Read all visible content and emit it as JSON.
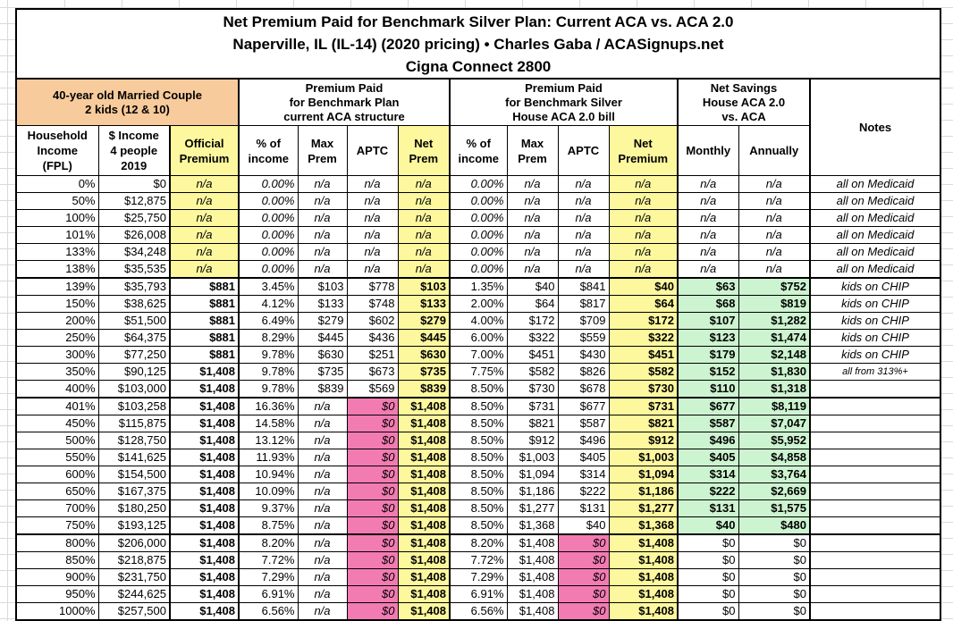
{
  "title": {
    "line1": "Net Premium Paid for Benchmark Silver Plan: Current ACA vs. ACA 2.0",
    "line2": "Naperville, IL (IL-14) (2020 pricing) • Charles Gaba / ACASignups.net",
    "line3": "Cigna Connect 2800"
  },
  "colors": {
    "orange": "#F8CB9C",
    "yellow": "#FDF89E",
    "pink": "#F27BB2",
    "green": "#CDF4D0",
    "grid": "#D9D9D9"
  },
  "header": {
    "profile": "40-year old Married Couple\n2 kids (12 & 10)",
    "group_current": "Premium Paid\nfor Benchmark Plan\ncurrent ACA structure",
    "group_aca2": "Premium Paid\nfor Benchmark Silver\nHouse ACA 2.0 bill",
    "group_savings": "Net Savings\nHouse ACA 2.0\nvs. ACA",
    "notes": "Notes",
    "columns": [
      "Household\nIncome\n(FPL)",
      "$ Income\n4 people\n2019",
      "Official\nPremium",
      "% of\nincome",
      "Max\nPrem",
      "APTC",
      "Net\nPrem",
      "% of\nincome",
      "Max\nPrem",
      "APTC",
      "Net\nPremium",
      "Monthly",
      "Annually"
    ]
  },
  "table": {
    "rows": [
      {
        "type": "medicaid",
        "fpl": "0%",
        "income": "$0",
        "official": "n/a",
        "aca": [
          "0.00%",
          "n/a",
          "n/a",
          "n/a"
        ],
        "aca2": [
          "0.00%",
          "n/a",
          "n/a",
          "n/a"
        ],
        "monthly": "n/a",
        "annually": "n/a",
        "note": "all on Medicaid"
      },
      {
        "type": "medicaid",
        "fpl": "50%",
        "income": "$12,875",
        "official": "n/a",
        "aca": [
          "0.00%",
          "n/a",
          "n/a",
          "n/a"
        ],
        "aca2": [
          "0.00%",
          "n/a",
          "n/a",
          "n/a"
        ],
        "monthly": "n/a",
        "annually": "n/a",
        "note": "all on Medicaid"
      },
      {
        "type": "medicaid",
        "fpl": "100%",
        "income": "$25,750",
        "official": "n/a",
        "aca": [
          "0.00%",
          "n/a",
          "n/a",
          "n/a"
        ],
        "aca2": [
          "0.00%",
          "n/a",
          "n/a",
          "n/a"
        ],
        "monthly": "n/a",
        "annually": "n/a",
        "note": "all on Medicaid"
      },
      {
        "type": "medicaid",
        "fpl": "101%",
        "income": "$26,008",
        "official": "n/a",
        "aca": [
          "0.00%",
          "n/a",
          "n/a",
          "n/a"
        ],
        "aca2": [
          "0.00%",
          "n/a",
          "n/a",
          "n/a"
        ],
        "monthly": "n/a",
        "annually": "n/a",
        "note": "all on Medicaid"
      },
      {
        "type": "medicaid",
        "fpl": "133%",
        "income": "$34,248",
        "official": "n/a",
        "aca": [
          "0.00%",
          "n/a",
          "n/a",
          "n/a"
        ],
        "aca2": [
          "0.00%",
          "n/a",
          "n/a",
          "n/a"
        ],
        "monthly": "n/a",
        "annually": "n/a",
        "note": "all on Medicaid"
      },
      {
        "type": "medicaid",
        "fpl": "138%",
        "income": "$35,535",
        "official": "n/a",
        "aca": [
          "0.00%",
          "n/a",
          "n/a",
          "n/a"
        ],
        "aca2": [
          "0.00%",
          "n/a",
          "n/a",
          "n/a"
        ],
        "monthly": "n/a",
        "annually": "n/a",
        "note": "all on Medicaid"
      },
      {
        "type": "subsidized",
        "fpl": "139%",
        "income": "$35,793",
        "official": "$881",
        "aca": [
          "3.45%",
          "$103",
          "$778",
          "$103"
        ],
        "aca2": [
          "1.35%",
          "$40",
          "$841",
          "$40"
        ],
        "monthly": "$63",
        "annually": "$752",
        "note": "kids on CHIP"
      },
      {
        "type": "subsidized",
        "fpl": "150%",
        "income": "$38,625",
        "official": "$881",
        "aca": [
          "4.12%",
          "$133",
          "$748",
          "$133"
        ],
        "aca2": [
          "2.00%",
          "$64",
          "$817",
          "$64"
        ],
        "monthly": "$68",
        "annually": "$819",
        "note": "kids on CHIP"
      },
      {
        "type": "subsidized",
        "fpl": "200%",
        "income": "$51,500",
        "official": "$881",
        "aca": [
          "6.49%",
          "$279",
          "$602",
          "$279"
        ],
        "aca2": [
          "4.00%",
          "$172",
          "$709",
          "$172"
        ],
        "monthly": "$107",
        "annually": "$1,282",
        "note": "kids on CHIP"
      },
      {
        "type": "subsidized",
        "fpl": "250%",
        "income": "$64,375",
        "official": "$881",
        "aca": [
          "8.29%",
          "$445",
          "$436",
          "$445"
        ],
        "aca2": [
          "6.00%",
          "$322",
          "$559",
          "$322"
        ],
        "monthly": "$123",
        "annually": "$1,474",
        "note": "kids on CHIP"
      },
      {
        "type": "subsidized",
        "fpl": "300%",
        "income": "$77,250",
        "official": "$881",
        "aca": [
          "9.78%",
          "$630",
          "$251",
          "$630"
        ],
        "aca2": [
          "7.00%",
          "$451",
          "$430",
          "$451"
        ],
        "monthly": "$179",
        "annually": "$2,148",
        "note": "kids on CHIP"
      },
      {
        "type": "subsidized",
        "fpl": "350%",
        "income": "$90,125",
        "official": "$1,408",
        "aca": [
          "9.78%",
          "$735",
          "$673",
          "$735"
        ],
        "aca2": [
          "7.75%",
          "$582",
          "$826",
          "$582"
        ],
        "monthly": "$152",
        "annually": "$1,830",
        "note": "all from 313%+",
        "note_small": true
      },
      {
        "type": "subsidized",
        "fpl": "400%",
        "income": "$103,000",
        "official": "$1,408",
        "aca": [
          "9.78%",
          "$839",
          "$569",
          "$839"
        ],
        "aca2": [
          "8.50%",
          "$730",
          "$678",
          "$730"
        ],
        "monthly": "$110",
        "annually": "$1,318",
        "note": ""
      },
      {
        "type": "aca2_only",
        "fpl": "401%",
        "income": "$103,258",
        "official": "$1,408",
        "aca": [
          "16.36%",
          "n/a",
          "$0",
          "$1,408"
        ],
        "aca2": [
          "8.50%",
          "$731",
          "$677",
          "$731"
        ],
        "monthly": "$677",
        "annually": "$8,119",
        "note": ""
      },
      {
        "type": "aca2_only",
        "fpl": "450%",
        "income": "$115,875",
        "official": "$1,408",
        "aca": [
          "14.58%",
          "n/a",
          "$0",
          "$1,408"
        ],
        "aca2": [
          "8.50%",
          "$821",
          "$587",
          "$821"
        ],
        "monthly": "$587",
        "annually": "$7,047",
        "note": ""
      },
      {
        "type": "aca2_only",
        "fpl": "500%",
        "income": "$128,750",
        "official": "$1,408",
        "aca": [
          "13.12%",
          "n/a",
          "$0",
          "$1,408"
        ],
        "aca2": [
          "8.50%",
          "$912",
          "$496",
          "$912"
        ],
        "monthly": "$496",
        "annually": "$5,952",
        "note": ""
      },
      {
        "type": "aca2_only",
        "fpl": "550%",
        "income": "$141,625",
        "official": "$1,408",
        "aca": [
          "11.93%",
          "n/a",
          "$0",
          "$1,408"
        ],
        "aca2": [
          "8.50%",
          "$1,003",
          "$405",
          "$1,003"
        ],
        "monthly": "$405",
        "annually": "$4,858",
        "note": ""
      },
      {
        "type": "aca2_only",
        "fpl": "600%",
        "income": "$154,500",
        "official": "$1,408",
        "aca": [
          "10.94%",
          "n/a",
          "$0",
          "$1,408"
        ],
        "aca2": [
          "8.50%",
          "$1,094",
          "$314",
          "$1,094"
        ],
        "monthly": "$314",
        "annually": "$3,764",
        "note": ""
      },
      {
        "type": "aca2_only",
        "fpl": "650%",
        "income": "$167,375",
        "official": "$1,408",
        "aca": [
          "10.09%",
          "n/a",
          "$0",
          "$1,408"
        ],
        "aca2": [
          "8.50%",
          "$1,186",
          "$222",
          "$1,186"
        ],
        "monthly": "$222",
        "annually": "$2,669",
        "note": ""
      },
      {
        "type": "aca2_only",
        "fpl": "700%",
        "income": "$180,250",
        "official": "$1,408",
        "aca": [
          "9.37%",
          "n/a",
          "$0",
          "$1,408"
        ],
        "aca2": [
          "8.50%",
          "$1,277",
          "$131",
          "$1,277"
        ],
        "monthly": "$131",
        "annually": "$1,575",
        "note": ""
      },
      {
        "type": "aca2_only",
        "fpl": "750%",
        "income": "$193,125",
        "official": "$1,408",
        "aca": [
          "8.75%",
          "n/a",
          "$0",
          "$1,408"
        ],
        "aca2": [
          "8.50%",
          "$1,368",
          "$40",
          "$1,368"
        ],
        "monthly": "$40",
        "annually": "$480",
        "note": ""
      },
      {
        "type": "unsubsidized",
        "fpl": "800%",
        "income": "$206,000",
        "official": "$1,408",
        "aca": [
          "8.20%",
          "n/a",
          "$0",
          "$1,408"
        ],
        "aca2": [
          "8.20%",
          "$1,408",
          "$0",
          "$1,408"
        ],
        "monthly": "$0",
        "annually": "$0",
        "note": ""
      },
      {
        "type": "unsubsidized",
        "fpl": "850%",
        "income": "$218,875",
        "official": "$1,408",
        "aca": [
          "7.72%",
          "n/a",
          "$0",
          "$1,408"
        ],
        "aca2": [
          "7.72%",
          "$1,408",
          "$0",
          "$1,408"
        ],
        "monthly": "$0",
        "annually": "$0",
        "note": ""
      },
      {
        "type": "unsubsidized",
        "fpl": "900%",
        "income": "$231,750",
        "official": "$1,408",
        "aca": [
          "7.29%",
          "n/a",
          "$0",
          "$1,408"
        ],
        "aca2": [
          "7.29%",
          "$1,408",
          "$0",
          "$1,408"
        ],
        "monthly": "$0",
        "annually": "$0",
        "note": ""
      },
      {
        "type": "unsubsidized",
        "fpl": "950%",
        "income": "$244,625",
        "official": "$1,408",
        "aca": [
          "6.91%",
          "n/a",
          "$0",
          "$1,408"
        ],
        "aca2": [
          "6.91%",
          "$1,408",
          "$0",
          "$1,408"
        ],
        "monthly": "$0",
        "annually": "$0",
        "note": ""
      },
      {
        "type": "unsubsidized",
        "fpl": "1000%",
        "income": "$257,500",
        "official": "$1,408",
        "aca": [
          "6.56%",
          "n/a",
          "$0",
          "$1,408"
        ],
        "aca2": [
          "6.56%",
          "$1,408",
          "$0",
          "$1,408"
        ],
        "monthly": "$0",
        "annually": "$0",
        "note": ""
      }
    ]
  }
}
